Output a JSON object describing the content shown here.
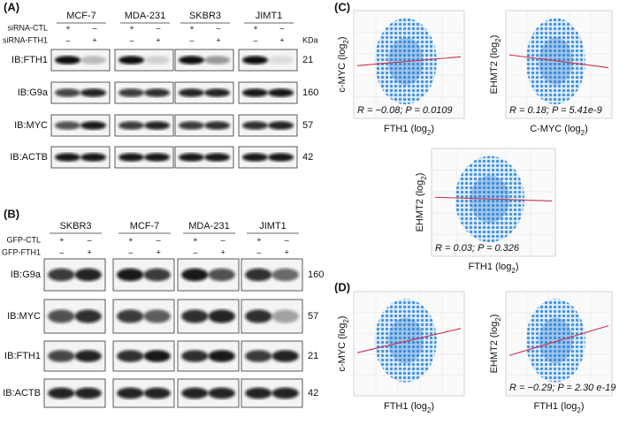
{
  "blots": [
    {
      "label": "(A)",
      "cell_lines": [
        "MCF-7",
        "MDA-231",
        "SKBR3",
        "JIMT1"
      ],
      "conditions": [
        {
          "name": "siRNA-CTL",
          "signs": [
            "+",
            "–",
            "+",
            "–",
            "+",
            "–",
            "+",
            "–"
          ]
        },
        {
          "name": "siRNA-FTH1",
          "signs": [
            "–",
            "+",
            "–",
            "+",
            "–",
            "+",
            "–",
            "+"
          ]
        }
      ],
      "kda_header": "KDa",
      "rows": [
        {
          "name": "IB:FTH1",
          "kda": "21"
        },
        {
          "name": "IB:G9a",
          "kda": "160"
        },
        {
          "name": "IB:MYC",
          "kda": "57"
        },
        {
          "name": "IB:ACTB",
          "kda": "42"
        }
      ]
    },
    {
      "label": "(B)",
      "cell_lines": [
        "SKBR3",
        "MCF-7",
        "MDA-231",
        "JIMT1"
      ],
      "conditions": [
        {
          "name": "GFP-CTL",
          "signs": [
            "+",
            "–",
            "+",
            "–",
            "+",
            "–",
            "+",
            "–"
          ]
        },
        {
          "name": "GFP-FTH1",
          "signs": [
            "–",
            "+",
            "–",
            "+",
            "–",
            "+",
            "–",
            "+"
          ]
        }
      ],
      "rows": [
        {
          "name": "IB:G9a",
          "kda": "160"
        },
        {
          "name": "IB:MYC",
          "kda": "57"
        },
        {
          "name": "IB:FTH1",
          "kda": "21"
        },
        {
          "name": "IB:ACTB",
          "kda": "42"
        }
      ]
    }
  ],
  "scatter_panels": [
    {
      "label": "(C)",
      "plots": [
        {
          "ylabel": {
            "text": "c-MYC (log",
            "sub": "2",
            "end": ")"
          },
          "xlabel": {
            "text": "FTH1 (log",
            "sub": "2",
            "end": ")"
          },
          "stat": "R = −0.08; P = 0.0109"
        },
        {
          "ylabel": {
            "text": "EHMT2 (log",
            "sub": "2",
            "end": ")"
          },
          "xlabel": {
            "text": "C-MYC (log",
            "sub": "2",
            "end": ")"
          },
          "stat": "R = 0.18; P = 5.41e-9"
        },
        {
          "ylabel": {
            "text": "EHMT2 (log",
            "sub": "2",
            "end": ")"
          },
          "xlabel": {
            "text": "FTH1 (log",
            "sub": "2",
            "end": ")"
          },
          "stat": "R = 0.03; P = 0.326"
        }
      ]
    },
    {
      "label": "(D)",
      "plots": [
        {
          "ylabel": {
            "text": "c-MYC (log",
            "sub": "2",
            "end": ")"
          },
          "xlabel": {
            "text": "FTH1 (log",
            "sub": "2",
            "end": ")"
          }
        },
        {
          "ylabel": {
            "text": "EHMT2 (log",
            "sub": "2",
            "end": ")"
          },
          "xlabel": {
            "text": "FTH1 (log",
            "sub": "2",
            "end": ")"
          },
          "stat": "R = −0.29; P = 2.30 e-19"
        }
      ]
    }
  ]
}
